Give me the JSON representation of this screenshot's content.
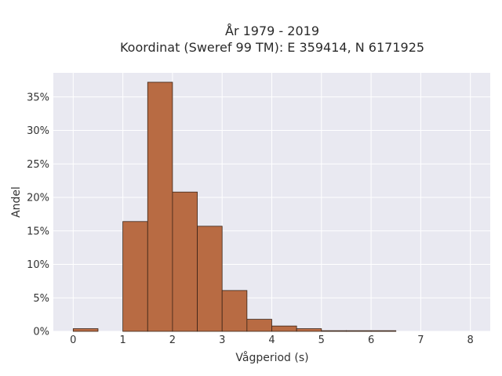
{
  "chart_data": {
    "type": "bar",
    "title": "År 1979 - 2019",
    "subtitle": "Koordinat (Sweref 99 TM): E 359414, N 6171925",
    "xlabel": "Vågperiod (s)",
    "ylabel": "Andel",
    "bin_width": 0.5,
    "bins": [
      {
        "x0": 0.0,
        "value": 0.4
      },
      {
        "x0": 0.5,
        "value": 0.0
      },
      {
        "x0": 1.0,
        "value": 16.4
      },
      {
        "x0": 1.5,
        "value": 37.2
      },
      {
        "x0": 2.0,
        "value": 20.8
      },
      {
        "x0": 2.5,
        "value": 15.7
      },
      {
        "x0": 3.0,
        "value": 6.1
      },
      {
        "x0": 3.5,
        "value": 1.8
      },
      {
        "x0": 4.0,
        "value": 0.8
      },
      {
        "x0": 4.5,
        "value": 0.4
      },
      {
        "x0": 5.0,
        "value": 0.1
      },
      {
        "x0": 5.5,
        "value": 0.1
      },
      {
        "x0": 6.0,
        "value": 0.1
      }
    ],
    "xlim": [
      -0.4,
      8.4
    ],
    "ylim": [
      0,
      38.6
    ],
    "x_ticks": [
      {
        "value": 0,
        "label": "0"
      },
      {
        "value": 1,
        "label": "1"
      },
      {
        "value": 2,
        "label": "2"
      },
      {
        "value": 3,
        "label": "3"
      },
      {
        "value": 4,
        "label": "4"
      },
      {
        "value": 5,
        "label": "5"
      },
      {
        "value": 6,
        "label": "6"
      },
      {
        "value": 7,
        "label": "7"
      },
      {
        "value": 8,
        "label": "8"
      }
    ],
    "y_ticks": [
      {
        "value": 0,
        "label": "0%"
      },
      {
        "value": 5,
        "label": "5%"
      },
      {
        "value": 10,
        "label": "10%"
      },
      {
        "value": 15,
        "label": "15%"
      },
      {
        "value": 20,
        "label": "20%"
      },
      {
        "value": 25,
        "label": "25%"
      },
      {
        "value": 30,
        "label": "30%"
      },
      {
        "value": 35,
        "label": "35%"
      }
    ],
    "grid": true,
    "colors": {
      "bar_fill": "#b86b43",
      "bar_stroke": "#3a2418",
      "plot_background": "#e9e9f1",
      "grid": "#ffffff"
    }
  }
}
